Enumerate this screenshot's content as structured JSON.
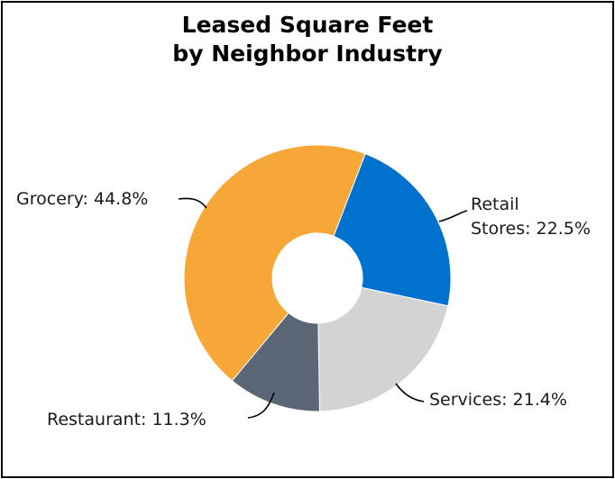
{
  "chart_data": {
    "type": "pie",
    "variant": "donut",
    "title_lines": [
      "Leased Square Feet",
      "by Neighbor Industry"
    ],
    "slices": [
      {
        "name": "Retail Stores",
        "value": 22.5,
        "label_lines": [
          "Retail",
          "Stores: 22.5%"
        ],
        "color": "#0072ce"
      },
      {
        "name": "Services",
        "value": 21.4,
        "label_lines": [
          "Services: 21.4%"
        ],
        "color": "#d3d3d3"
      },
      {
        "name": "Restaurant",
        "value": 11.3,
        "label_lines": [
          "Restaurant: 11.3%"
        ],
        "color": "#5b6676"
      },
      {
        "name": "Grocery",
        "value": 44.8,
        "label_lines": [
          "Grocery: 44.8%"
        ],
        "color": "#f7a737"
      }
    ],
    "start_angle_deg": 21,
    "direction": "clockwise",
    "legend": "none"
  }
}
